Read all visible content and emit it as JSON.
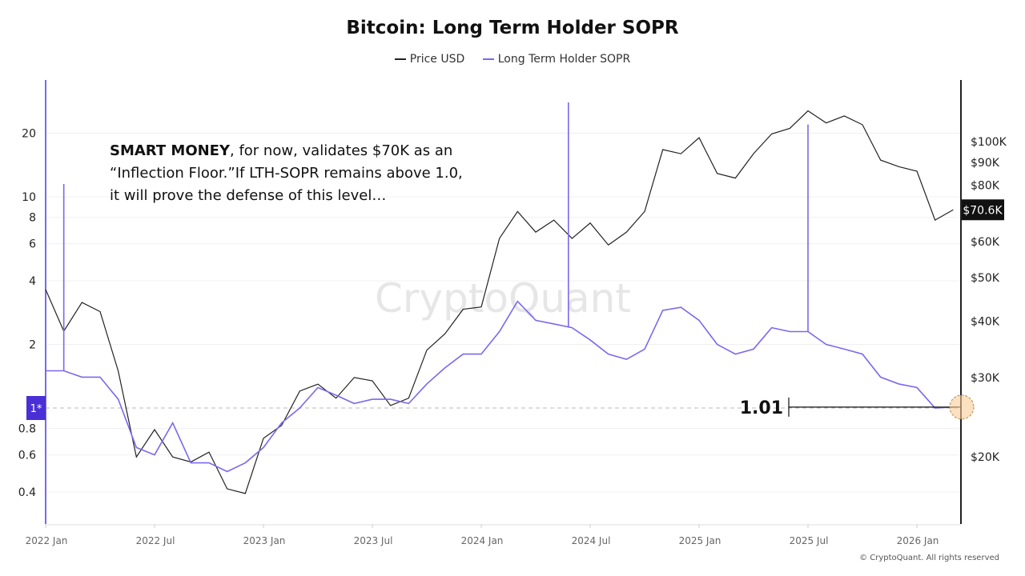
{
  "title": "Bitcoin: Long Term Holder SOPR",
  "legend": [
    {
      "label": "Price USD",
      "color": "#222222"
    },
    {
      "label": "Long Term Holder SOPR",
      "color": "#7b68ee"
    }
  ],
  "annotation": {
    "bold": "SMART MONEY",
    "line1_rest": ", for now, validates $70K as an",
    "line2": "“Inflection Floor.”If LTH-SOPR remains above 1.0,",
    "line3": "it will prove the defense of this level…"
  },
  "watermark": "CryptoQuant",
  "copyright": "© CryptoQuant. All rights reserved",
  "chart_data": {
    "type": "line",
    "title": "Bitcoin: Long Term Holder SOPR",
    "x_start": "2022-01",
    "x_step": "month",
    "x_ticks": [
      "2022 Jan",
      "2022 Jul",
      "2023 Jan",
      "2023 Jul",
      "2024 Jan",
      "2024 Jul",
      "2025 Jan",
      "2025 Jul",
      "2026 Jan"
    ],
    "left_axis": {
      "scale": "log",
      "ticks": [
        "20",
        "10",
        "8",
        "6",
        "4",
        "2",
        "0.8",
        "0.6",
        "0.4"
      ],
      "tick_values": [
        20,
        10,
        8,
        6,
        4,
        2,
        0.8,
        0.6,
        0.4
      ],
      "marker_label": "1*",
      "marker_value": 1
    },
    "right_axis": {
      "scale": "log",
      "ticks": [
        "$100K",
        "$90K",
        "$80K",
        "$70K",
        "$60K",
        "$50K",
        "$40K",
        "$30K",
        "$20K"
      ],
      "tick_values": [
        100,
        90,
        80,
        70,
        60,
        50,
        40,
        30,
        20
      ],
      "current_label": "$70.6K",
      "current_value": 70.6
    },
    "series": [
      {
        "name": "Price USD",
        "axis": "right",
        "unit": "K USD",
        "values": [
          47,
          38,
          44,
          42,
          31,
          20,
          23,
          20,
          19.5,
          20.5,
          17,
          16.6,
          22,
          23.5,
          28,
          29,
          27,
          30,
          29.5,
          26,
          27,
          34.5,
          37.5,
          42.5,
          43,
          61,
          70,
          63,
          67,
          61,
          66,
          59,
          63,
          70,
          96,
          94,
          102,
          85,
          83,
          94,
          104,
          107,
          117,
          110,
          114,
          109,
          91,
          88,
          86,
          67,
          70.6
        ]
      },
      {
        "name": "Long Term Holder SOPR",
        "axis": "left",
        "values": [
          1.5,
          1.5,
          1.4,
          1.4,
          1.1,
          0.65,
          0.6,
          0.85,
          0.55,
          0.55,
          0.5,
          0.55,
          0.65,
          0.85,
          1.0,
          1.25,
          1.15,
          1.05,
          1.1,
          1.1,
          1.05,
          1.3,
          1.55,
          1.8,
          1.8,
          2.3,
          3.2,
          2.6,
          2.5,
          2.4,
          2.1,
          1.8,
          1.7,
          1.9,
          2.9,
          3.0,
          2.6,
          2.0,
          1.8,
          1.9,
          2.4,
          2.3,
          2.3,
          2.0,
          1.9,
          1.8,
          1.4,
          1.3,
          1.25,
          1.0,
          1.01
        ],
        "spikes": [
          {
            "month": 1,
            "value": 11.5
          },
          {
            "month": 28.8,
            "value": 28
          },
          {
            "month": 42,
            "value": 22
          }
        ]
      }
    ],
    "callout": {
      "label": "1.01",
      "value": 1.01
    }
  }
}
